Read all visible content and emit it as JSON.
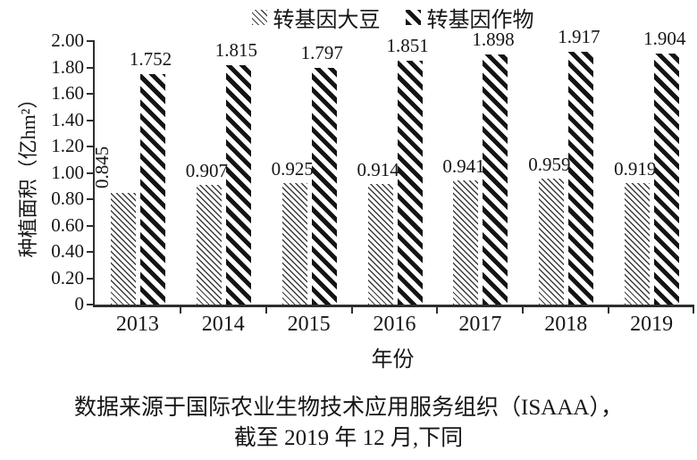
{
  "chart_data": {
    "type": "bar",
    "title": "",
    "categories": [
      "2013",
      "2014",
      "2015",
      "2016",
      "2017",
      "2018",
      "2019"
    ],
    "series": [
      {
        "name": "转基因大豆",
        "pattern": "fine-hatch",
        "values": [
          0.845,
          0.907,
          0.925,
          0.914,
          0.941,
          0.959,
          0.919
        ]
      },
      {
        "name": "转基因作物",
        "pattern": "bold-stripe",
        "values": [
          1.752,
          1.815,
          1.797,
          1.851,
          1.898,
          1.917,
          1.904
        ]
      }
    ],
    "xlabel": "年份",
    "ylabel": "种植面积（亿hm²）",
    "ylim": [
      0,
      2.0
    ],
    "ytick_step": 0.2,
    "yticks": [
      "2.00",
      "1.80",
      "1.60",
      "1.40",
      "1.20",
      "1.00",
      "0.80",
      "0.60",
      "0.40",
      "0.20",
      "0"
    ],
    "legend_position": "top",
    "grid": false,
    "bar_color": "#141414",
    "axis_color": "#2e2e2e",
    "value_label_decimals": 3
  },
  "caption": {
    "line1": "数据来源于国际农业生物技术应用服务组织（ISAAA），",
    "line2": "截至 2019 年 12 月,下同"
  }
}
